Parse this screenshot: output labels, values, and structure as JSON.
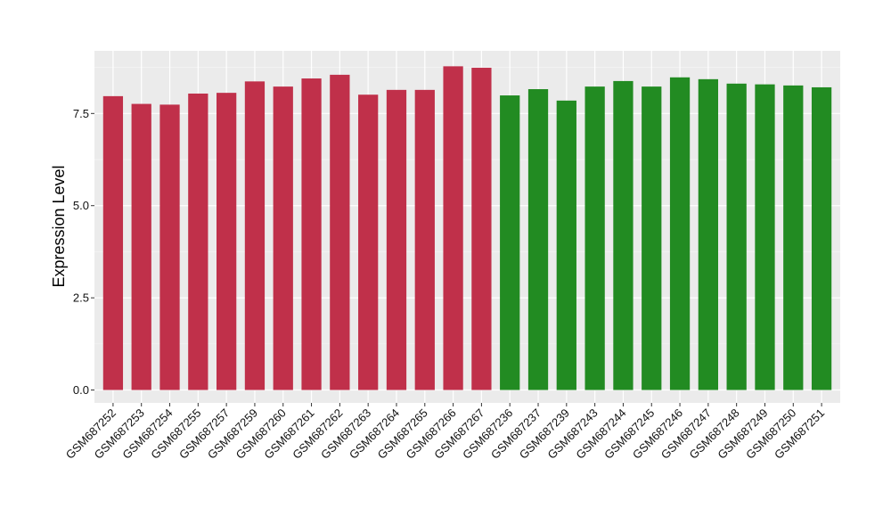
{
  "chart_data": {
    "type": "bar",
    "title": "",
    "xlabel": "",
    "ylabel": "Expression Level",
    "ylim": [
      -0.35,
      9.2
    ],
    "yticks": [
      0.0,
      2.5,
      5.0,
      7.5
    ],
    "ytick_labels": [
      "0.0",
      "2.5",
      "5.0",
      "7.5"
    ],
    "grid": true,
    "legend": "none",
    "background": "#ebebeb",
    "categories": [
      "GSM687252",
      "GSM687253",
      "GSM687254",
      "GSM687255",
      "GSM687257",
      "GSM687259",
      "GSM687260",
      "GSM687261",
      "GSM687262",
      "GSM687263",
      "GSM687264",
      "GSM687265",
      "GSM687266",
      "GSM687267",
      "GSM687236",
      "GSM687237",
      "GSM687239",
      "GSM687243",
      "GSM687244",
      "GSM687245",
      "GSM687246",
      "GSM687247",
      "GSM687248",
      "GSM687249",
      "GSM687250",
      "GSM687251"
    ],
    "values": [
      7.97,
      7.76,
      7.74,
      8.04,
      8.06,
      8.37,
      8.23,
      8.45,
      8.55,
      8.01,
      8.14,
      8.14,
      8.78,
      8.74,
      7.99,
      8.16,
      7.85,
      8.23,
      8.38,
      8.23,
      8.48,
      8.43,
      8.31,
      8.29,
      8.26,
      8.21
    ],
    "bar_colors": [
      "#c0304a",
      "#c0304a",
      "#c0304a",
      "#c0304a",
      "#c0304a",
      "#c0304a",
      "#c0304a",
      "#c0304a",
      "#c0304a",
      "#c0304a",
      "#c0304a",
      "#c0304a",
      "#c0304a",
      "#c0304a",
      "#228b22",
      "#228b22",
      "#228b22",
      "#228b22",
      "#228b22",
      "#228b22",
      "#228b22",
      "#228b22",
      "#228b22",
      "#228b22",
      "#228b22",
      "#228b22"
    ]
  }
}
